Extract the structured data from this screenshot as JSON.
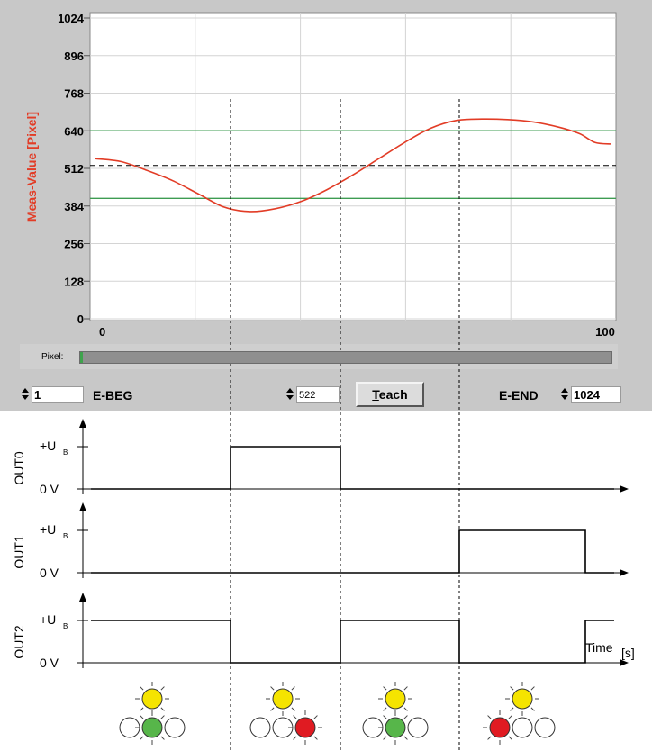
{
  "chart_data": {
    "type": "line",
    "ylabel": "Meas-Value [Pixel]",
    "y_ticks": [
      "1024",
      "896",
      "768",
      "640",
      "512",
      "384",
      "256",
      "128",
      "0"
    ],
    "x_ticks": [
      "0",
      "100"
    ],
    "xlim": [
      0,
      100
    ],
    "ylim": [
      0,
      1024
    ],
    "grid": true,
    "threshold_upper": 640,
    "threshold_lower": 410,
    "teach_level": 522,
    "series": [
      {
        "color": "#e23c26",
        "x": [
          0,
          5,
          10,
          15,
          20,
          25,
          30,
          35,
          40,
          45,
          50,
          55,
          60,
          65,
          70,
          75,
          80,
          85,
          90,
          94,
          97,
          100
        ],
        "values": [
          545,
          535,
          505,
          470,
          425,
          380,
          365,
          375,
          400,
          440,
          490,
          545,
          600,
          648,
          675,
          680,
          678,
          670,
          652,
          630,
          600,
          595
        ]
      }
    ]
  },
  "controls": {
    "pixel_label": "Pixel:",
    "pixel_fill_fraction": 0.005,
    "ebeg_value": "1",
    "ebeg_label": "E-BEG",
    "mid_value": "522",
    "teach_label_first": "T",
    "teach_label_rest": "each",
    "eend_label": "E-END",
    "eend_value": "1024"
  },
  "timing": {
    "plus_ub_label": "+U",
    "plus_ub_sub": "B",
    "zero_v_label": "0 V",
    "time_label": "Time",
    "time_unit": "[s]",
    "outputs": [
      {
        "name": "OUT0",
        "levels": [
          0,
          1,
          0,
          0,
          0
        ]
      },
      {
        "name": "OUT1",
        "levels": [
          0,
          0,
          0,
          1,
          0
        ]
      },
      {
        "name": "OUT2",
        "levels": [
          1,
          0,
          1,
          0,
          1
        ]
      }
    ],
    "leds": [
      {
        "top": "#f5e400",
        "left": "",
        "center": "#57b64a",
        "right": ""
      },
      {
        "top": "#f5e400",
        "left": "",
        "center": "",
        "right": "#e01b22"
      },
      {
        "top": "#f5e400",
        "left": "",
        "center": "#57b64a",
        "right": ""
      },
      {
        "top": "#f5e400",
        "left": "#e01b22",
        "center": "",
        "right": ""
      }
    ]
  },
  "colors": {
    "panel": "#c8c8c8",
    "curve": "#e23c26",
    "threshold": "#3e9c52",
    "grid": "#d4d4d4"
  }
}
